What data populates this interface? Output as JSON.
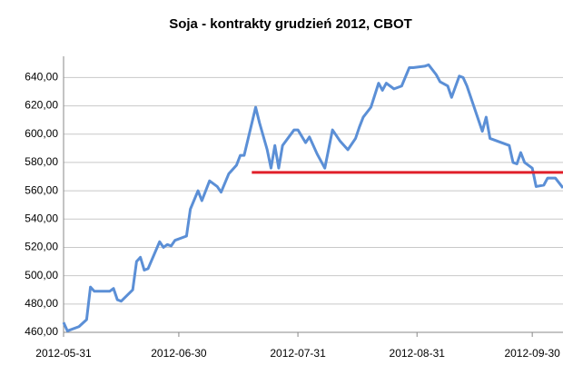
{
  "chart_data": {
    "type": "line",
    "title": "Soja - kontrakty grudzień 2012, CBOT",
    "x": [
      "2012-05-31",
      "2012-06-01",
      "2012-06-04",
      "2012-06-06",
      "2012-06-07",
      "2012-06-08",
      "2012-06-12",
      "2012-06-13",
      "2012-06-14",
      "2012-06-15",
      "2012-06-18",
      "2012-06-19",
      "2012-06-20",
      "2012-06-21",
      "2012-06-22",
      "2012-06-25",
      "2012-06-26",
      "2012-06-27",
      "2012-06-28",
      "2012-06-29",
      "2012-07-02",
      "2012-07-03",
      "2012-07-05",
      "2012-07-06",
      "2012-07-08",
      "2012-07-10",
      "2012-07-11",
      "2012-07-13",
      "2012-07-15",
      "2012-07-16",
      "2012-07-17",
      "2012-07-20",
      "2012-07-21",
      "2012-07-23",
      "2012-07-24",
      "2012-07-25",
      "2012-07-26",
      "2012-07-27",
      "2012-07-30",
      "2012-07-31",
      "2012-08-02",
      "2012-08-03",
      "2012-08-05",
      "2012-08-07",
      "2012-08-09",
      "2012-08-11",
      "2012-08-13",
      "2012-08-15",
      "2012-08-16",
      "2012-08-17",
      "2012-08-19",
      "2012-08-21",
      "2012-08-22",
      "2012-08-23",
      "2012-08-25",
      "2012-08-27",
      "2012-08-29",
      "2012-08-30",
      "2012-09-02",
      "2012-09-03",
      "2012-09-05",
      "2012-09-06",
      "2012-09-08",
      "2012-09-09",
      "2012-09-11",
      "2012-09-12",
      "2012-09-13",
      "2012-09-15",
      "2012-09-17",
      "2012-09-18",
      "2012-09-19",
      "2012-09-21",
      "2012-09-24",
      "2012-09-25",
      "2012-09-26",
      "2012-09-27",
      "2012-09-28",
      "2012-09-30",
      "2012-10-01",
      "2012-10-03",
      "2012-10-04",
      "2012-10-06",
      "2012-10-08"
    ],
    "series": [
      {
        "color": "#5b8fd6",
        "values": [
          467,
          461,
          464,
          469,
          492,
          489,
          489,
          491,
          483,
          482,
          490,
          510,
          513,
          504,
          505,
          524,
          520,
          522,
          521,
          525,
          528,
          547,
          560,
          553,
          567,
          563,
          559,
          572,
          578,
          585,
          585,
          619,
          608,
          589,
          576,
          592,
          576,
          592,
          603,
          603,
          594,
          598,
          586,
          576,
          603,
          595,
          589,
          597,
          605,
          612,
          619,
          636,
          631,
          636,
          632,
          634,
          647,
          647,
          648,
          649,
          642,
          637,
          634,
          626,
          641,
          640,
          634,
          618,
          602,
          612,
          597,
          595,
          592,
          580,
          579,
          587,
          580,
          576,
          563,
          564,
          569,
          569,
          562
        ]
      }
    ],
    "reference_line": {
      "value": 573,
      "color": "#e0202a",
      "x": [
        "2012-07-19",
        "2012-10-08"
      ]
    },
    "xlim": [
      "2012-05-31",
      "2012-10-08"
    ],
    "xticks": [
      "2012-05-31",
      "2012-06-30",
      "2012-07-31",
      "2012-08-31",
      "2012-09-30"
    ],
    "ylim": [
      460,
      655
    ],
    "yticks": [
      {
        "value": 460,
        "label": "460,00"
      },
      {
        "value": 480,
        "label": "480,00"
      },
      {
        "value": 500,
        "label": "500,00"
      },
      {
        "value": 520,
        "label": "520,00"
      },
      {
        "value": 540,
        "label": "540,00"
      },
      {
        "value": 560,
        "label": "560,00"
      },
      {
        "value": 580,
        "label": "580,00"
      },
      {
        "value": 600,
        "label": "600,00"
      },
      {
        "value": 620,
        "label": "620,00"
      },
      {
        "value": 640,
        "label": "640,00"
      }
    ],
    "grid": true
  }
}
